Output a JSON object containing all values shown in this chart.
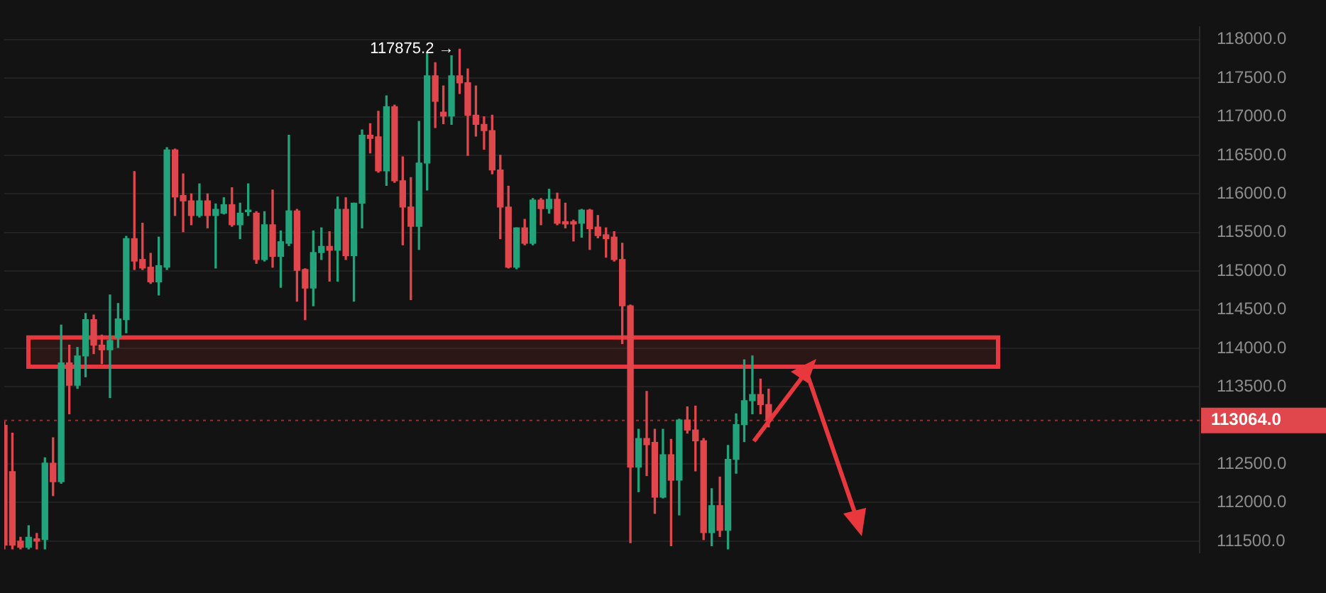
{
  "chart_data": {
    "type": "candlestick",
    "categories": [
      null,
      null,
      null,
      null,
      null,
      null,
      null,
      null,
      null,
      null,
      null,
      null,
      null,
      null,
      null,
      null,
      null,
      null,
      null,
      null,
      null,
      null,
      null,
      null,
      null,
      null,
      null,
      null,
      null,
      null,
      null,
      null,
      null,
      null,
      null,
      null,
      null,
      null,
      null,
      null,
      null,
      null,
      null,
      null,
      null,
      null,
      null,
      null,
      null,
      null,
      null,
      null,
      null,
      null,
      null,
      null,
      null,
      null,
      null,
      null,
      null,
      null,
      null,
      null,
      null,
      null,
      null,
      null,
      null,
      null,
      null,
      null,
      null,
      null,
      null,
      null,
      null,
      null,
      null,
      null,
      null,
      null,
      null,
      null,
      null,
      null,
      null,
      null,
      null,
      null,
      null,
      null,
      null,
      null,
      null,
      null,
      null,
      null,
      null,
      null,
      null,
      null,
      null,
      null,
      null,
      null,
      null,
      null,
      null,
      null,
      null,
      null,
      null,
      null,
      null,
      null,
      null,
      null,
      null,
      null,
      null,
      null,
      null,
      null,
      null,
      null,
      null,
      null,
      null,
      null,
      null,
      null,
      null,
      null,
      null,
      null,
      null,
      null,
      null,
      null,
      null,
      null,
      null,
      null,
      null,
      null,
      null,
      null
    ],
    "ohlc": [
      [
        113000,
        113050,
        111400,
        111450
      ],
      [
        112400,
        112900,
        111400,
        111450
      ],
      [
        111500,
        111550,
        111400,
        111420
      ],
      [
        111420,
        111700,
        111400,
        111550
      ],
      [
        111530,
        111600,
        111400,
        111500
      ],
      [
        111520,
        112580,
        111400,
        112510
      ],
      [
        112510,
        112840,
        112090,
        112270
      ],
      [
        112270,
        114300,
        112250,
        113810
      ],
      [
        113810,
        114040,
        113150,
        113520
      ],
      [
        113520,
        114010,
        113480,
        113900
      ],
      [
        113900,
        114450,
        113630,
        114370
      ],
      [
        114370,
        114430,
        113930,
        114040
      ],
      [
        114040,
        114170,
        113800,
        113980
      ],
      [
        113980,
        114690,
        113360,
        114100
      ],
      [
        114140,
        114580,
        114010,
        114380
      ],
      [
        114370,
        115450,
        114200,
        115420
      ],
      [
        115420,
        116290,
        115020,
        115130
      ],
      [
        115150,
        115620,
        115020,
        115040
      ],
      [
        115050,
        115230,
        114840,
        114860
      ],
      [
        114860,
        115440,
        114690,
        115070
      ],
      [
        115050,
        116600,
        115020,
        116570
      ],
      [
        116570,
        116580,
        115720,
        115960
      ],
      [
        115980,
        116260,
        115510,
        115910
      ],
      [
        115910,
        116000,
        115600,
        115720
      ],
      [
        115720,
        116130,
        115700,
        115910
      ],
      [
        115910,
        116000,
        115560,
        115720
      ],
      [
        115720,
        115870,
        115040,
        115800
      ],
      [
        115750,
        115950,
        115740,
        115860
      ],
      [
        115860,
        116080,
        115580,
        115600
      ],
      [
        115600,
        115880,
        115420,
        115750
      ],
      [
        115770,
        116130,
        115720,
        115790
      ],
      [
        115750,
        115770,
        115100,
        115150
      ],
      [
        115150,
        115770,
        115130,
        115600
      ],
      [
        115600,
        116050,
        115050,
        115190
      ],
      [
        115190,
        115520,
        114790,
        115380
      ],
      [
        115360,
        116760,
        115330,
        115780
      ],
      [
        115780,
        115800,
        114610,
        115010
      ],
      [
        115020,
        115030,
        114370,
        114780
      ],
      [
        114780,
        115520,
        114550,
        115240
      ],
      [
        115240,
        115560,
        115150,
        115320
      ],
      [
        115320,
        115510,
        114870,
        115270
      ],
      [
        115270,
        115960,
        114870,
        115800
      ],
      [
        115800,
        115950,
        115150,
        115200
      ],
      [
        115200,
        115880,
        114610,
        115880
      ],
      [
        115880,
        116830,
        115560,
        116760
      ],
      [
        116760,
        116910,
        116530,
        116720
      ],
      [
        116740,
        117070,
        116280,
        116300
      ],
      [
        116300,
        117270,
        116110,
        117130
      ],
      [
        117130,
        117150,
        116150,
        116170
      ],
      [
        116170,
        116480,
        115340,
        115830
      ],
      [
        115830,
        116210,
        114630,
        115580
      ],
      [
        115580,
        116940,
        115280,
        116400
      ],
      [
        116400,
        117820,
        116050,
        117530
      ],
      [
        117530,
        117700,
        116860,
        117200
      ],
      [
        117060,
        117400,
        116910,
        117010
      ],
      [
        117010,
        117790,
        116900,
        117530
      ],
      [
        117530,
        117875.2,
        117300,
        117440
      ],
      [
        117440,
        117620,
        116500,
        117020
      ],
      [
        117020,
        117400,
        116750,
        116900
      ],
      [
        116900,
        117000,
        116580,
        116820
      ],
      [
        116820,
        117020,
        116260,
        116310
      ],
      [
        116310,
        116500,
        115420,
        115830
      ],
      [
        115830,
        116100,
        115040,
        115050
      ],
      [
        115050,
        115560,
        115030,
        115560
      ],
      [
        115560,
        115670,
        115340,
        115360
      ],
      [
        115360,
        115940,
        115340,
        115920
      ],
      [
        115920,
        115940,
        115600,
        115810
      ],
      [
        115810,
        116060,
        115750,
        115930
      ],
      [
        115930,
        116010,
        115600,
        115620
      ],
      [
        115640,
        115880,
        115560,
        115610
      ],
      [
        115640,
        115660,
        115390,
        115610
      ],
      [
        115620,
        115800,
        115440,
        115790
      ],
      [
        115790,
        115800,
        115280,
        115550
      ],
      [
        115570,
        115720,
        115430,
        115460
      ],
      [
        115470,
        115560,
        115180,
        115420
      ],
      [
        115440,
        115510,
        115130,
        115150
      ],
      [
        115150,
        115360,
        114060,
        114550
      ],
      [
        114550,
        114560,
        111480,
        112460
      ],
      [
        112460,
        112950,
        112140,
        112830
      ],
      [
        112830,
        113440,
        112350,
        112750
      ],
      [
        112780,
        112950,
        111860,
        112070
      ],
      [
        112070,
        112950,
        112060,
        112620
      ],
      [
        112620,
        112820,
        111440,
        112290
      ],
      [
        112290,
        113080,
        111840,
        113070
      ],
      [
        113070,
        113240,
        112900,
        112940
      ],
      [
        112940,
        113250,
        112410,
        112800
      ],
      [
        112800,
        112830,
        111520,
        111610
      ],
      [
        111610,
        112180,
        111440,
        111960
      ],
      [
        111960,
        112330,
        111560,
        111640
      ],
      [
        111640,
        112740,
        111400,
        112560
      ],
      [
        112560,
        113150,
        112380,
        113010
      ],
      [
        113010,
        113850,
        112790,
        113320
      ],
      [
        113320,
        113900,
        113150,
        113400
      ],
      [
        113400,
        113600,
        113150,
        113270
      ],
      [
        113270,
        113470,
        112980,
        113064
      ],
      null,
      null,
      null,
      null,
      null,
      null,
      null,
      null,
      null,
      null,
      null,
      null,
      null,
      null,
      null,
      null,
      null,
      null,
      null,
      null,
      null,
      null,
      null,
      null,
      null,
      null,
      null,
      null,
      null,
      null,
      null,
      null,
      null,
      null,
      null,
      null,
      null,
      null,
      null,
      null,
      null,
      null,
      null,
      null,
      null,
      null,
      null,
      null,
      null,
      null,
      null,
      null,
      null
    ],
    "ylim": [
      111350,
      118160
    ],
    "yticks": [
      {
        "value": 111500,
        "label": "111500.0"
      },
      {
        "value": 112000,
        "label": "112000.0"
      },
      {
        "value": 112500,
        "label": "112500.0"
      },
      {
        "value": 113500,
        "label": "113500.0"
      },
      {
        "value": 114000,
        "label": "114000.0"
      },
      {
        "value": 114500,
        "label": "114500.0"
      },
      {
        "value": 115000,
        "label": "115000.0"
      },
      {
        "value": 115500,
        "label": "115500.0"
      },
      {
        "value": 116000,
        "label": "116000.0"
      },
      {
        "value": 116500,
        "label": "116500.0"
      },
      {
        "value": 117000,
        "label": "117000.0"
      },
      {
        "value": 117500,
        "label": "117500.0"
      },
      {
        "value": 118000,
        "label": "118000.0"
      }
    ],
    "grid": "y",
    "legend": false,
    "ref_lines": [
      {
        "axis": "y",
        "value": 113064,
        "label": "113064.0",
        "color": "#e0474c"
      }
    ],
    "bands": [
      {
        "axis": "y",
        "from": 113760,
        "to": 114140,
        "color": "#e8383d"
      }
    ],
    "annotations": [
      "117875.2 →"
    ]
  }
}
